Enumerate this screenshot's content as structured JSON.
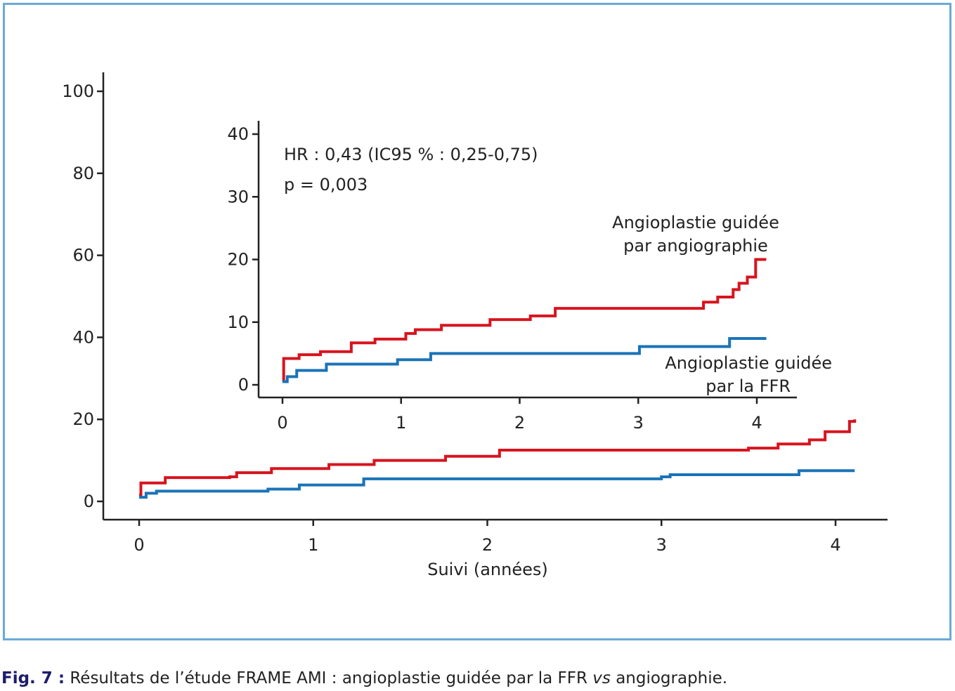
{
  "caption": {
    "label": "Fig. 7",
    "separator": " :",
    "text_before": " Résultats de l’étude FRAME AMI : angioplastie guidée par la FFR ",
    "text_italic": "vs",
    "text_after": " angiographie."
  },
  "colors": {
    "frame_border": "#6aaad6",
    "angiography_series": "#d7141e",
    "ffr_series": "#1a73b8",
    "axis": "#222222"
  },
  "chart_data": [
    {
      "type": "line",
      "panel": "main",
      "xlabel": "Suivi (années)",
      "ylabel": "",
      "xlim": [
        0,
        4.15
      ],
      "ylim": [
        0,
        100
      ],
      "x_ticks": [
        0,
        1,
        2,
        3,
        4
      ],
      "y_ticks": [
        0,
        20,
        40,
        60,
        80,
        100
      ],
      "grid": false,
      "step": true,
      "series": [
        {
          "key": "angiography",
          "color": "#d7141e",
          "x": [
            0,
            0.01,
            0.15,
            0.52,
            0.56,
            0.76,
            1.09,
            1.35,
            1.76,
            2.07,
            3.5,
            3.67,
            3.85,
            3.94,
            4.08,
            4.11
          ],
          "y": [
            1.5,
            4.5,
            5.8,
            6.0,
            7.0,
            8.0,
            9.0,
            10.0,
            11.0,
            12.5,
            13.0,
            14.0,
            15.0,
            17.0,
            19.5,
            20.0
          ]
        },
        {
          "key": "ffr",
          "color": "#1a73b8",
          "x": [
            0,
            0.04,
            0.1,
            0.3,
            0.5,
            0.74,
            0.92,
            1.29,
            3.0,
            3.05,
            3.79,
            4.11
          ],
          "y": [
            1.0,
            2.0,
            2.5,
            2.5,
            2.5,
            3.0,
            4.0,
            5.5,
            6.0,
            6.5,
            7.5,
            7.5
          ]
        }
      ]
    },
    {
      "type": "line",
      "panel": "inset",
      "xlabel": "",
      "ylabel": "",
      "xlim": [
        0,
        4.15
      ],
      "ylim": [
        0,
        40
      ],
      "x_ticks": [
        0,
        1,
        2,
        3,
        4
      ],
      "y_ticks": [
        0,
        10,
        20,
        30,
        40
      ],
      "grid": false,
      "step": true,
      "annotations": [
        "HR : 0,43 (IC95 % : 0,25-0,75)",
        "p = 0,003"
      ],
      "series": [
        {
          "name_lines": [
            "Angioplastie guidée",
            "par angiographie"
          ],
          "color": "#d7141e",
          "x": [
            0,
            0.01,
            0.14,
            0.32,
            0.58,
            0.78,
            1.04,
            1.12,
            1.34,
            1.75,
            2.09,
            2.3,
            3.55,
            3.67,
            3.8,
            3.85,
            3.92,
            3.99,
            4.08
          ],
          "y": [
            0.5,
            4.2,
            4.8,
            5.3,
            6.7,
            7.3,
            8.2,
            8.8,
            9.5,
            10.4,
            11.0,
            12.2,
            13.2,
            14.0,
            15.2,
            16.2,
            17.2,
            20.0,
            20.0
          ]
        },
        {
          "name_lines": [
            "Angioplastie guidée",
            "par la FFR"
          ],
          "color": "#1a73b8",
          "x": [
            0,
            0.04,
            0.12,
            0.37,
            0.97,
            1.25,
            3.01,
            3.77,
            4.08
          ],
          "y": [
            0.5,
            1.3,
            2.3,
            3.3,
            4.0,
            5.0,
            6.1,
            7.4,
            7.4
          ]
        }
      ]
    }
  ]
}
